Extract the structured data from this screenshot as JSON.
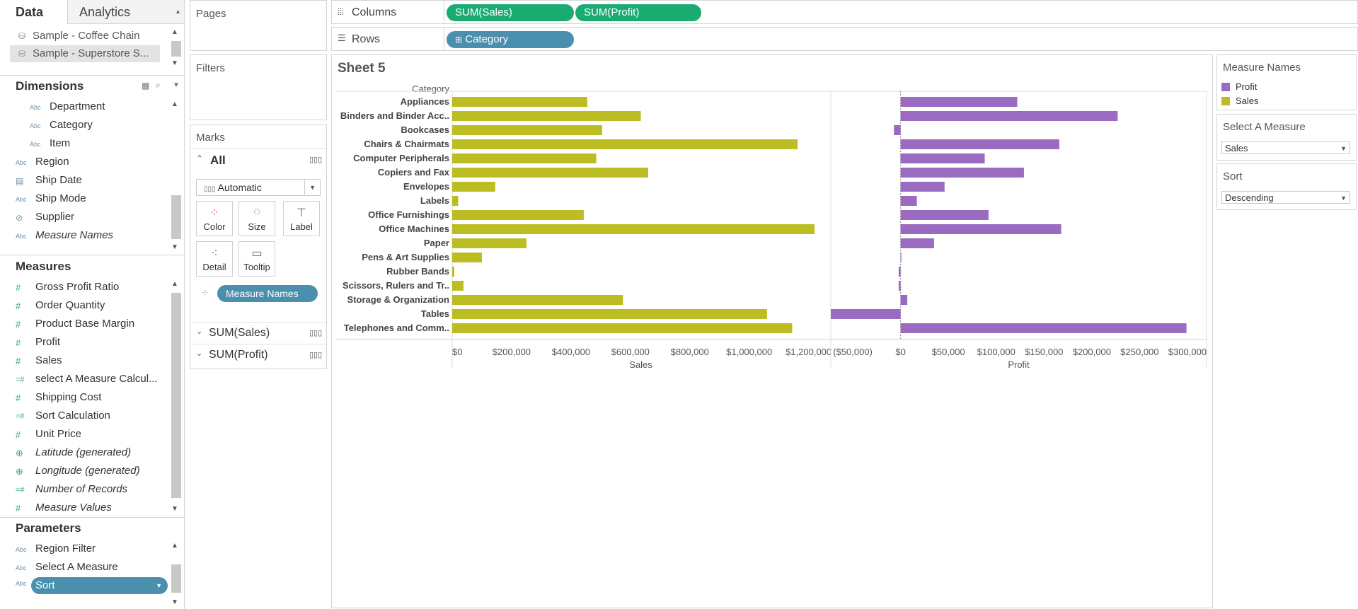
{
  "tabs": {
    "data": "Data",
    "analytics": "Analytics"
  },
  "datasources": [
    "Sample - Coffee Chain",
    "Sample - Superstore S..."
  ],
  "dimensions": {
    "title": "Dimensions",
    "items": [
      {
        "label": "Department",
        "icon": "Abc"
      },
      {
        "label": "Category",
        "icon": "Abc"
      },
      {
        "label": "Item",
        "icon": "Abc"
      },
      {
        "label": "Region",
        "icon": "Abc"
      },
      {
        "label": "Ship Date",
        "icon": "calendar"
      },
      {
        "label": "Ship Mode",
        "icon": "Abc"
      },
      {
        "label": "Supplier",
        "icon": "paperclip"
      },
      {
        "label": "Measure Names",
        "icon": "Abc"
      }
    ]
  },
  "measures": {
    "title": "Measures",
    "items": [
      {
        "label": "Gross Profit Ratio",
        "icon": "#"
      },
      {
        "label": "Order Quantity",
        "icon": "#"
      },
      {
        "label": "Product Base Margin",
        "icon": "#"
      },
      {
        "label": "Profit",
        "icon": "#"
      },
      {
        "label": "Sales",
        "icon": "#"
      },
      {
        "label": "select A Measure Calcul...",
        "icon": "=#"
      },
      {
        "label": "Shipping Cost",
        "icon": "#"
      },
      {
        "label": "Sort Calculation",
        "icon": "=#"
      },
      {
        "label": "Unit Price",
        "icon": "#"
      },
      {
        "label": "Latitude (generated)",
        "icon": "globe"
      },
      {
        "label": "Longitude (generated)",
        "icon": "globe"
      },
      {
        "label": "Number of Records",
        "icon": "=#"
      },
      {
        "label": "Measure Values",
        "icon": "#"
      }
    ]
  },
  "parameters": {
    "title": "Parameters",
    "items": [
      {
        "label": "Region Filter",
        "icon": "Abc"
      },
      {
        "label": "Select A Measure",
        "icon": "Abc"
      },
      {
        "label": "Sort",
        "icon": "Abc"
      }
    ]
  },
  "cards": {
    "pages": "Pages",
    "filters": "Filters",
    "marks": "Marks",
    "marks_all": "All",
    "mark_type": "Automatic",
    "buttons": [
      "Color",
      "Size",
      "Label",
      "Detail",
      "Tooltip"
    ],
    "color_pill": "Measure Names",
    "sub_marks": [
      "SUM(Sales)",
      "SUM(Profit)"
    ]
  },
  "shelves": {
    "columns_label": "Columns",
    "columns_pills": [
      "SUM(Sales)",
      "SUM(Profit)"
    ],
    "rows_label": "Rows",
    "rows_pills": [
      "Category"
    ]
  },
  "sheet": {
    "title": "Sheet 5",
    "category_header": "Category"
  },
  "legend": {
    "title": "Measure Names",
    "items": [
      {
        "label": "Profit",
        "color": "#9a6bc0"
      },
      {
        "label": "Sales",
        "color": "#bcbd22"
      }
    ]
  },
  "param_select": {
    "title": "Select A Measure",
    "value": "Sales"
  },
  "param_sort": {
    "title": "Sort",
    "value": "Descending"
  },
  "colors": {
    "sales": "#bcbd22",
    "profit": "#9a6bc0",
    "pill_green": "#1aab72",
    "pill_blue": "#4a8fad"
  },
  "chart_data": {
    "type": "bar",
    "orientation": "horizontal",
    "categories": [
      "Appliances",
      "Binders and Binder Acc..",
      "Bookcases",
      "Chairs & Chairmats",
      "Computer Peripherals",
      "Copiers and Fax",
      "Envelopes",
      "Labels",
      "Office Furnishings",
      "Office Machines",
      "Paper",
      "Pens & Art Supplies",
      "Rubber Bands",
      "Scissors, Rulers and Tr..",
      "Storage & Organization",
      "Tables",
      "Telephones and Comm.."
    ],
    "series": [
      {
        "name": "Sales",
        "color": "#bcbd22",
        "values": [
          455000,
          635000,
          505000,
          1163000,
          485000,
          660000,
          145000,
          20000,
          443000,
          1220000,
          250000,
          100000,
          7000,
          38000,
          575000,
          1060000,
          1145000
        ]
      },
      {
        "name": "Profit",
        "color": "#9a6bc0",
        "values": [
          122000,
          227000,
          -7000,
          166000,
          88000,
          129000,
          46000,
          17000,
          92000,
          168000,
          35000,
          0,
          -2000,
          -2000,
          7000,
          -73000,
          299000
        ]
      }
    ],
    "panels": [
      {
        "measure": "Sales",
        "xlabel": "Sales",
        "xlim": [
          0,
          1270000
        ],
        "ticks": [
          0,
          200000,
          400000,
          600000,
          800000,
          1000000,
          1200000
        ],
        "tick_labels": [
          "$0",
          "$200,000",
          "$400,000",
          "$600,000",
          "$800,000",
          "$1,000,000",
          "$1,200,000"
        ]
      },
      {
        "measure": "Profit",
        "xlabel": "Profit",
        "xlim": [
          -73000,
          320000
        ],
        "ticks": [
          -50000,
          0,
          50000,
          100000,
          150000,
          200000,
          250000,
          300000
        ],
        "tick_labels": [
          "($50,000)",
          "$0",
          "$50,000",
          "$100,000",
          "$150,000",
          "$200,000",
          "$250,000",
          "$300,000"
        ]
      }
    ],
    "ylabel": "Category"
  }
}
